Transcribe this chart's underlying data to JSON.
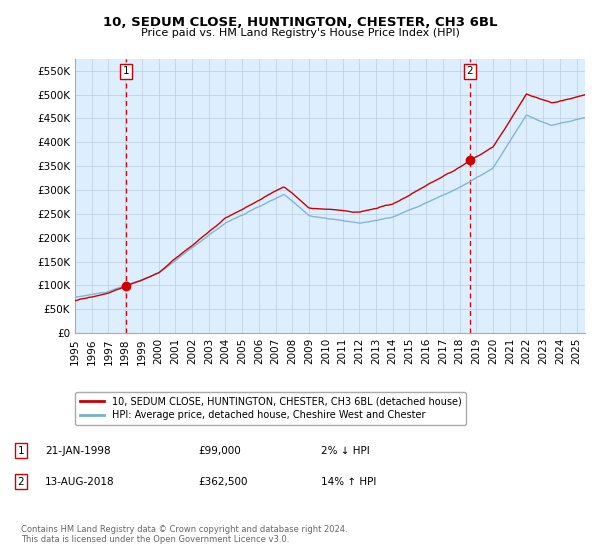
{
  "title": "10, SEDUM CLOSE, HUNTINGTON, CHESTER, CH3 6BL",
  "subtitle": "Price paid vs. HM Land Registry's House Price Index (HPI)",
  "ylabel_ticks": [
    "£0",
    "£50K",
    "£100K",
    "£150K",
    "£200K",
    "£250K",
    "£300K",
    "£350K",
    "£400K",
    "£450K",
    "£500K",
    "£550K"
  ],
  "ytick_values": [
    0,
    50000,
    100000,
    150000,
    200000,
    250000,
    300000,
    350000,
    400000,
    450000,
    500000,
    550000
  ],
  "ylim": [
    0,
    575000
  ],
  "xlim_start": 1995.0,
  "xlim_end": 2025.5,
  "sale1_x": 1998.055,
  "sale1_y": 99000,
  "sale2_x": 2018.617,
  "sale2_y": 362500,
  "annotation1_date": "21-JAN-1998",
  "annotation1_price": "£99,000",
  "annotation1_hpi": "2% ↓ HPI",
  "annotation2_date": "13-AUG-2018",
  "annotation2_price": "£362,500",
  "annotation2_hpi": "14% ↑ HPI",
  "legend_line1": "10, SEDUM CLOSE, HUNTINGTON, CHESTER, CH3 6BL (detached house)",
  "legend_line2": "HPI: Average price, detached house, Cheshire West and Chester",
  "footnote": "Contains HM Land Registry data © Crown copyright and database right 2024.\nThis data is licensed under the Open Government Licence v3.0.",
  "price_line_color": "#cc0000",
  "hpi_line_color": "#7aafd4",
  "chart_bg_color": "#ddeeff",
  "background_color": "#ffffff",
  "grid_color": "#bbccdd",
  "vline_color": "#cc0000",
  "marker_color": "#cc0000",
  "xtick_years": [
    1995,
    1996,
    1997,
    1998,
    1999,
    2000,
    2001,
    2002,
    2003,
    2004,
    2005,
    2006,
    2007,
    2008,
    2009,
    2010,
    2011,
    2012,
    2013,
    2014,
    2015,
    2016,
    2017,
    2018,
    2019,
    2020,
    2021,
    2022,
    2023,
    2024,
    2025
  ]
}
